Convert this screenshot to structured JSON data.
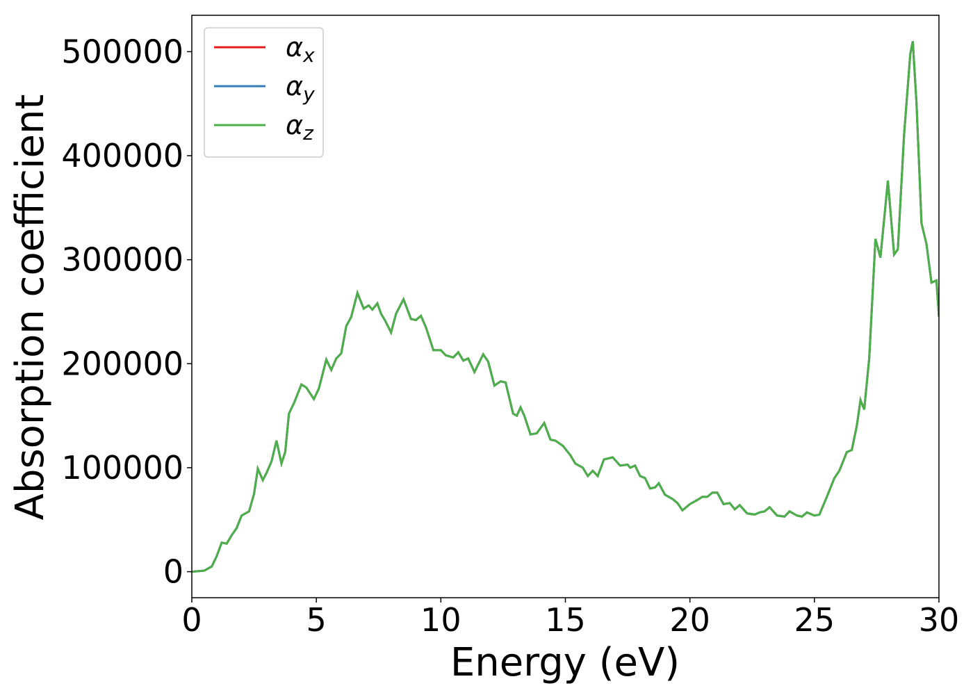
{
  "chart_data": {
    "type": "line",
    "x": [
      0,
      0.5,
      0.8,
      1.0,
      1.2,
      1.4,
      1.6,
      1.8,
      2.0,
      2.3,
      2.5,
      2.65,
      2.85,
      3.0,
      3.2,
      3.4,
      3.6,
      3.75,
      3.9,
      4.1,
      4.4,
      4.6,
      4.9,
      5.1,
      5.4,
      5.6,
      5.8,
      6.0,
      6.2,
      6.4,
      6.65,
      6.9,
      7.1,
      7.25,
      7.45,
      7.6,
      7.75,
      8.0,
      8.2,
      8.5,
      8.8,
      9.0,
      9.2,
      9.4,
      9.7,
      10.0,
      10.2,
      10.5,
      10.7,
      10.9,
      11.1,
      11.35,
      11.7,
      11.9,
      12.15,
      12.4,
      12.6,
      12.9,
      13.05,
      13.2,
      13.35,
      13.6,
      13.85,
      14.15,
      14.4,
      14.6,
      14.9,
      15.2,
      15.4,
      15.7,
      15.9,
      16.1,
      16.3,
      16.55,
      16.9,
      17.2,
      17.5,
      17.6,
      17.8,
      18.0,
      18.2,
      18.4,
      18.6,
      18.75,
      19.0,
      19.3,
      19.5,
      19.7,
      20.0,
      20.3,
      20.5,
      20.7,
      20.9,
      21.1,
      21.35,
      21.6,
      21.8,
      22.0,
      22.3,
      22.6,
      22.8,
      23.0,
      23.2,
      23.5,
      23.8,
      24.0,
      24.3,
      24.5,
      24.7,
      25.0,
      25.2,
      25.5,
      25.8,
      26.0,
      26.3,
      26.5,
      26.7,
      26.85,
      27.0,
      27.2,
      27.45,
      27.65,
      27.95,
      28.2,
      28.35,
      28.6,
      28.85,
      28.95,
      29.1,
      29.3,
      29.5,
      29.7,
      29.9,
      30.0
    ],
    "series": [
      {
        "name": "αx",
        "color": "#e41a1c",
        "values": [
          0,
          1000,
          5000,
          15000,
          28000,
          27000,
          35000,
          42000,
          54000,
          58000,
          75000,
          99000,
          88000,
          95000,
          106000,
          126000,
          104000,
          115000,
          152000,
          162000,
          180000,
          177000,
          166000,
          176000,
          204000,
          194000,
          205000,
          210000,
          236000,
          245000,
          268000,
          253000,
          256000,
          252000,
          258000,
          248000,
          242000,
          230000,
          248000,
          262000,
          243000,
          242000,
          246000,
          235000,
          213000,
          213000,
          208000,
          206000,
          211000,
          203000,
          205000,
          192000,
          209000,
          202000,
          179000,
          183000,
          182000,
          152000,
          150000,
          158000,
          150000,
          132000,
          133000,
          143000,
          127000,
          126000,
          121000,
          112000,
          104000,
          100000,
          92000,
          97000,
          92000,
          108000,
          110000,
          102000,
          103000,
          100000,
          102000,
          92000,
          90000,
          80000,
          81000,
          85000,
          74000,
          70000,
          66000,
          59000,
          65000,
          69000,
          72000,
          72000,
          76000,
          76000,
          65000,
          66000,
          60000,
          64000,
          56000,
          55000,
          57000,
          58000,
          62000,
          54000,
          53000,
          58000,
          54000,
          53000,
          57000,
          54000,
          55000,
          72000,
          90000,
          97000,
          115000,
          117000,
          140000,
          165000,
          156000,
          205000,
          320000,
          302000,
          376000,
          305000,
          310000,
          420000,
          498000,
          510000,
          450000,
          335000,
          315000,
          278000,
          280000,
          245000
        ]
      },
      {
        "name": "αy",
        "color": "#377eb8",
        "values": [
          0,
          1000,
          5000,
          15000,
          28000,
          27000,
          35000,
          42000,
          54000,
          58000,
          75000,
          99000,
          88000,
          95000,
          106000,
          126000,
          104000,
          115000,
          152000,
          162000,
          180000,
          177000,
          166000,
          176000,
          204000,
          194000,
          205000,
          210000,
          236000,
          245000,
          268000,
          253000,
          256000,
          252000,
          258000,
          248000,
          242000,
          230000,
          248000,
          262000,
          243000,
          242000,
          246000,
          235000,
          213000,
          213000,
          208000,
          206000,
          211000,
          203000,
          205000,
          192000,
          209000,
          202000,
          179000,
          183000,
          182000,
          152000,
          150000,
          158000,
          150000,
          132000,
          133000,
          143000,
          127000,
          126000,
          121000,
          112000,
          104000,
          100000,
          92000,
          97000,
          92000,
          108000,
          110000,
          102000,
          103000,
          100000,
          102000,
          92000,
          90000,
          80000,
          81000,
          85000,
          74000,
          70000,
          66000,
          59000,
          65000,
          69000,
          72000,
          72000,
          76000,
          76000,
          65000,
          66000,
          60000,
          64000,
          56000,
          55000,
          57000,
          58000,
          62000,
          54000,
          53000,
          58000,
          54000,
          53000,
          57000,
          54000,
          55000,
          72000,
          90000,
          97000,
          115000,
          117000,
          140000,
          165000,
          156000,
          205000,
          320000,
          302000,
          376000,
          305000,
          310000,
          420000,
          498000,
          510000,
          450000,
          335000,
          315000,
          278000,
          280000,
          245000
        ]
      },
      {
        "name": "αz",
        "color": "#4daf4a",
        "values": [
          0,
          1000,
          5000,
          15000,
          28000,
          27000,
          35000,
          42000,
          54000,
          58000,
          75000,
          99000,
          88000,
          95000,
          106000,
          126000,
          104000,
          115000,
          152000,
          162000,
          180000,
          177000,
          166000,
          176000,
          204000,
          194000,
          205000,
          210000,
          236000,
          245000,
          268000,
          253000,
          256000,
          252000,
          258000,
          248000,
          242000,
          230000,
          248000,
          262000,
          243000,
          242000,
          246000,
          235000,
          213000,
          213000,
          208000,
          206000,
          211000,
          203000,
          205000,
          192000,
          209000,
          202000,
          179000,
          183000,
          182000,
          152000,
          150000,
          158000,
          150000,
          132000,
          133000,
          143000,
          127000,
          126000,
          121000,
          112000,
          104000,
          100000,
          92000,
          97000,
          92000,
          108000,
          110000,
          102000,
          103000,
          100000,
          102000,
          92000,
          90000,
          80000,
          81000,
          85000,
          74000,
          70000,
          66000,
          59000,
          65000,
          69000,
          72000,
          72000,
          76000,
          76000,
          65000,
          66000,
          60000,
          64000,
          56000,
          55000,
          57000,
          58000,
          62000,
          54000,
          53000,
          58000,
          54000,
          53000,
          57000,
          54000,
          55000,
          72000,
          90000,
          97000,
          115000,
          117000,
          140000,
          165000,
          156000,
          205000,
          320000,
          302000,
          376000,
          305000,
          310000,
          420000,
          498000,
          510000,
          450000,
          335000,
          315000,
          278000,
          280000,
          245000
        ]
      }
    ],
    "xlabel": "Energy (eV)",
    "ylabel": "Absorption coefficient",
    "xlim": [
      0,
      30
    ],
    "xticks": [
      0,
      5,
      10,
      15,
      20,
      25,
      30
    ],
    "ylim": [
      -25000,
      535000
    ],
    "yticks": [
      0,
      100000,
      200000,
      300000,
      400000,
      500000
    ],
    "legend": "upper left",
    "grid": false
  }
}
